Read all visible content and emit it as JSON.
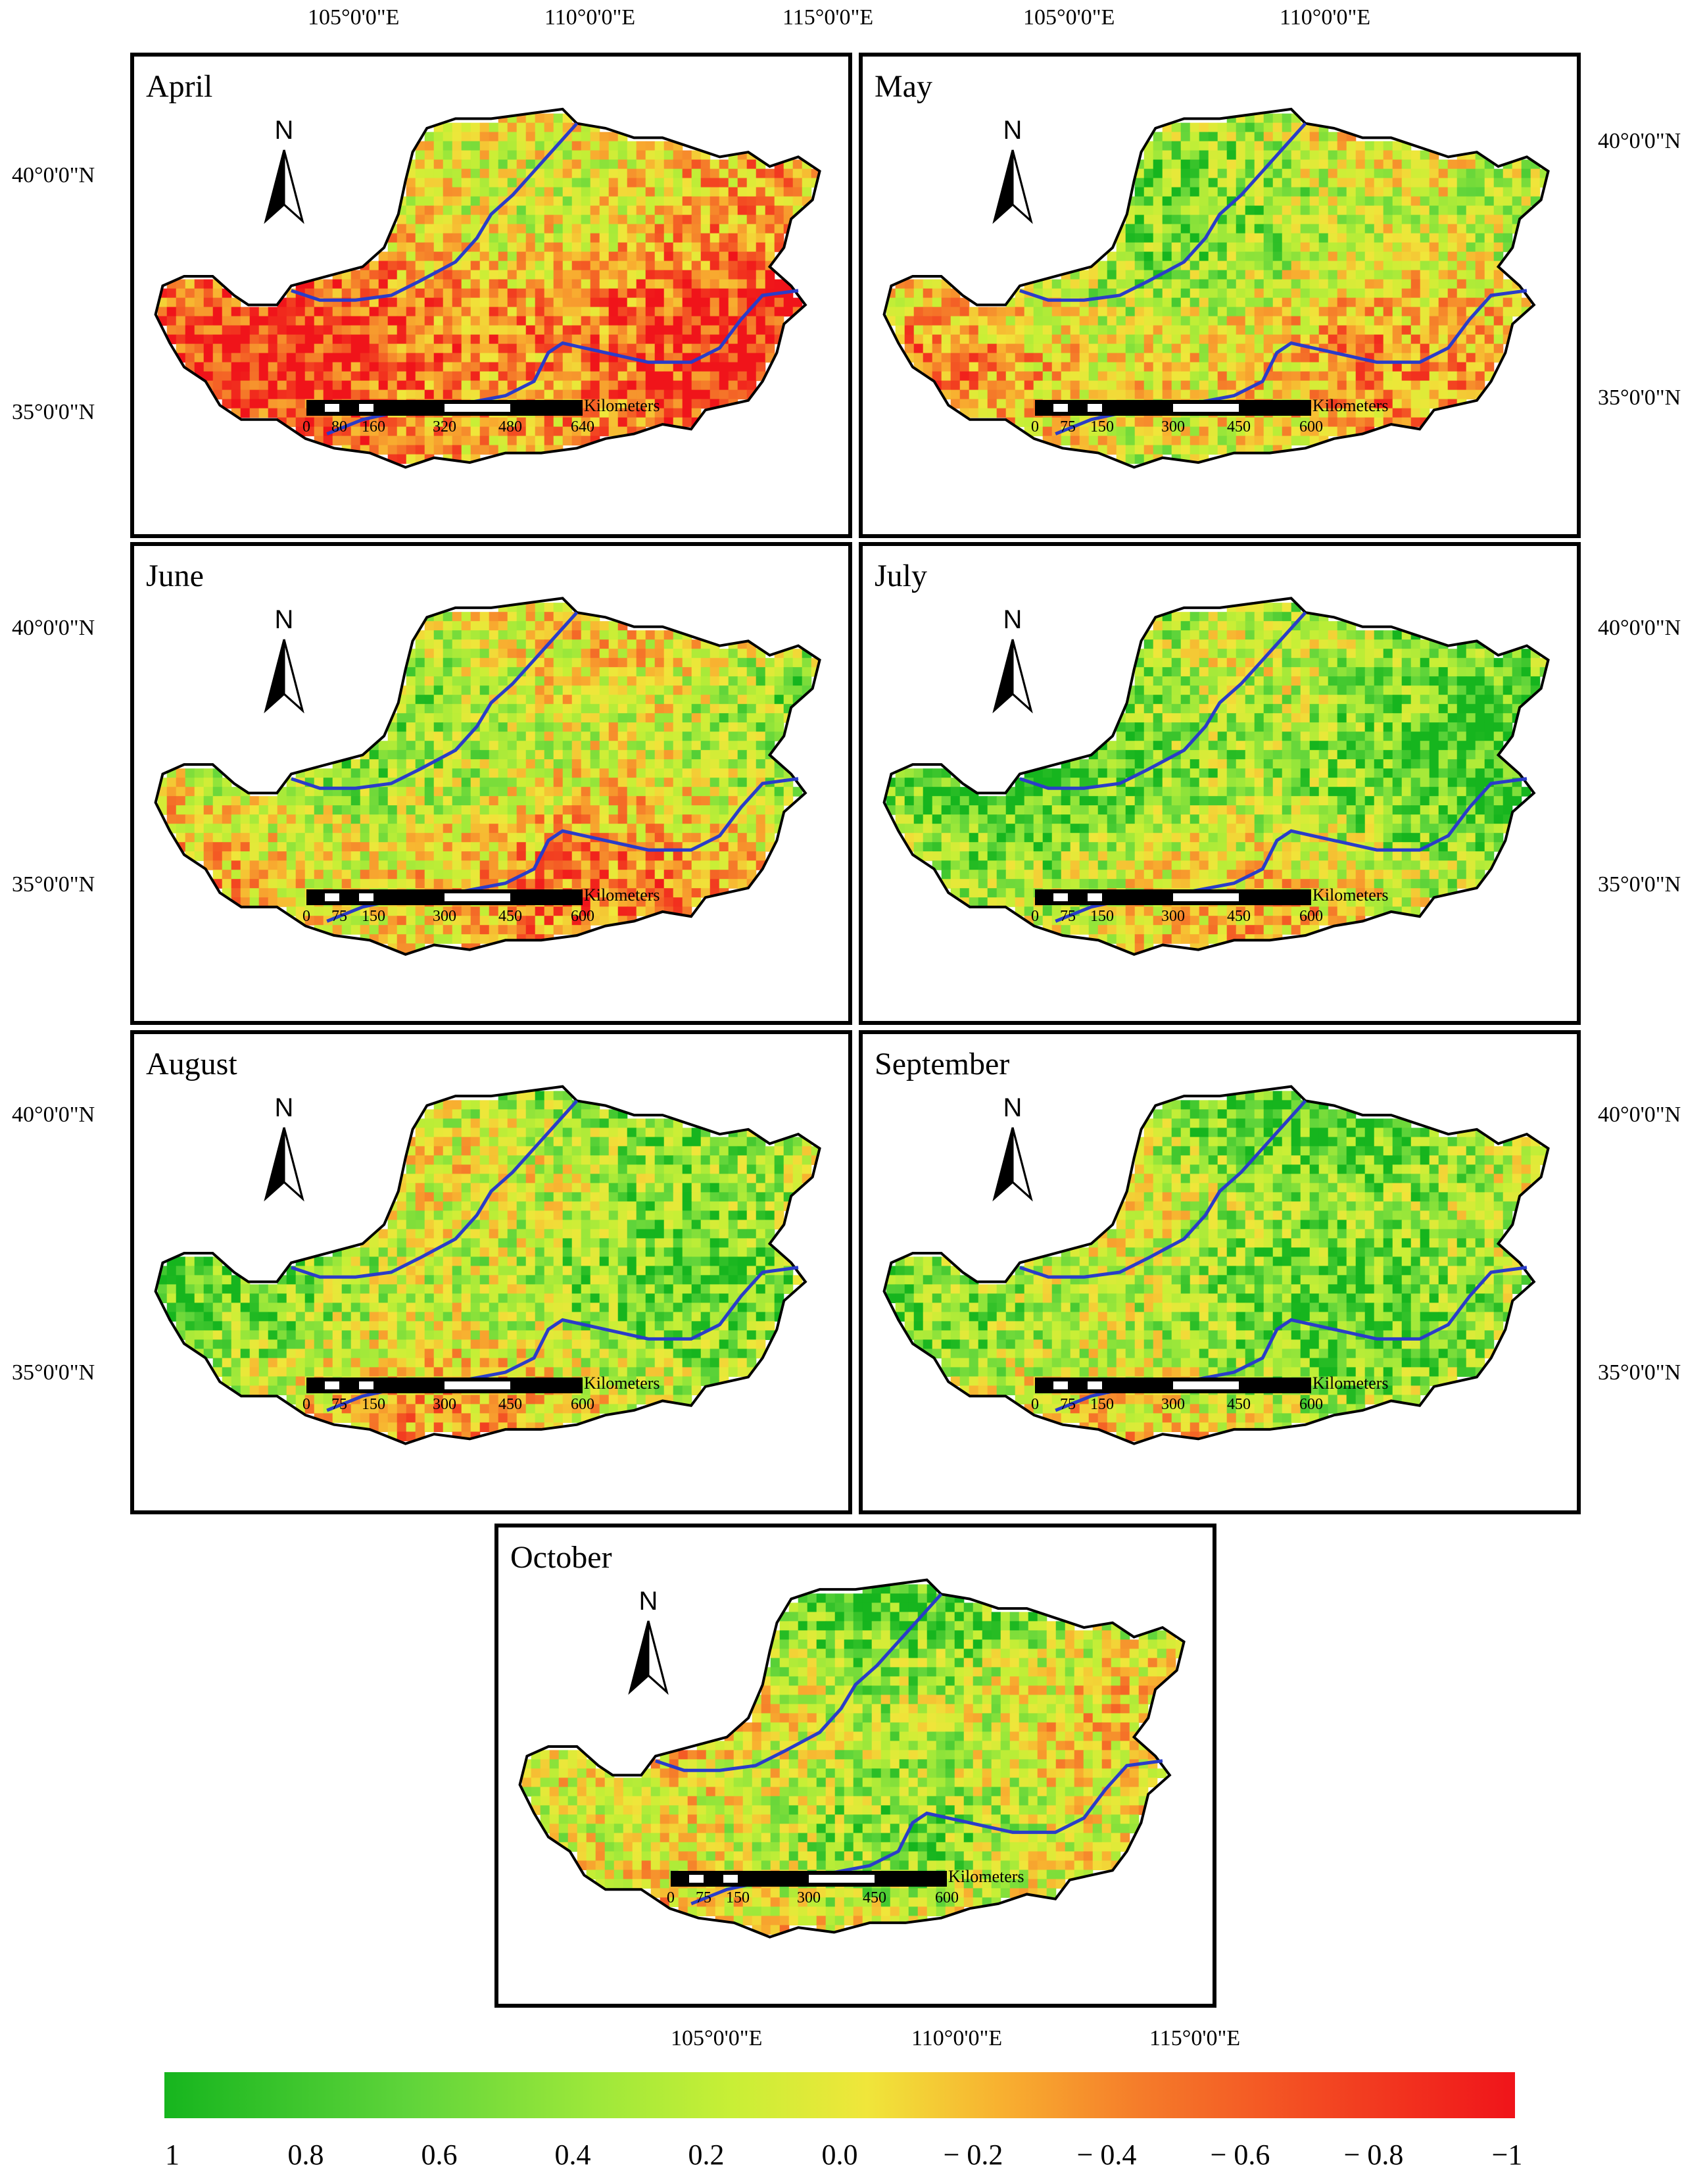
{
  "axes": {
    "top_lon": [
      "105°0'0\"E",
      "110°0'0\"E",
      "115°0'0\"E",
      "105°0'0\"E",
      "110°0'0\"E"
    ],
    "left_lat": [
      "40°0'0\"N",
      "35°0'0\"N",
      "40°0'0\"N",
      "35°0'0\"N",
      "40°0'0\"N",
      "35°0'0\"N"
    ],
    "right_lat": [
      "40°0'0\"N",
      "35°0'0\"N",
      "40°0'0\"N",
      "35°0'0\"N",
      "40°0'0\"N",
      "35°0'0\"N"
    ],
    "bottom_lon": [
      "105°0'0\"E",
      "110°0'0\"E",
      "115°0'0\"E"
    ]
  },
  "north_label": "N",
  "scale_units": "Kilometers",
  "panels": [
    {
      "month": "April",
      "scale_ticks": [
        "0",
        "80",
        "160",
        "320",
        "480",
        "640"
      ],
      "greenness": 0.3
    },
    {
      "month": "May",
      "scale_ticks": [
        "0",
        "75",
        "150",
        "300",
        "450",
        "600"
      ],
      "greenness": 0.55
    },
    {
      "month": "June",
      "scale_ticks": [
        "0",
        "75",
        "150",
        "300",
        "450",
        "600"
      ],
      "greenness": 0.55
    },
    {
      "month": "July",
      "scale_ticks": [
        "0",
        "75",
        "150",
        "300",
        "450",
        "600"
      ],
      "greenness": 0.72
    },
    {
      "month": "August",
      "scale_ticks": [
        "0",
        "75",
        "150",
        "300",
        "450",
        "600"
      ],
      "greenness": 0.65
    },
    {
      "month": "September",
      "scale_ticks": [
        "0",
        "75",
        "150",
        "300",
        "450",
        "600"
      ],
      "greenness": 0.7
    },
    {
      "month": "October",
      "scale_ticks": [
        "0",
        "75",
        "150",
        "300",
        "450",
        "600"
      ],
      "greenness": 0.6
    }
  ],
  "legend": {
    "colors": [
      "#16b51e",
      "#5fd43a",
      "#9ee83a",
      "#c8ef36",
      "#f0e63a",
      "#f8b030",
      "#f57d2a",
      "#f34a22",
      "#f0141a"
    ],
    "ticks": [
      "1",
      "0.8",
      "0.6",
      "0.4",
      "0.2",
      "0.0",
      "− 0.2",
      "− 0.4",
      "− 0.6",
      "− 0.8",
      "−1"
    ]
  }
}
